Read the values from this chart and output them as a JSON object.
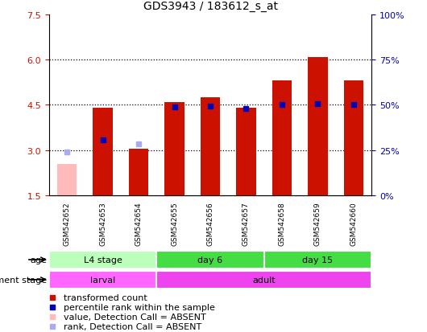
{
  "title": "GDS3943 / 183612_s_at",
  "samples": [
    "GSM542652",
    "GSM542653",
    "GSM542654",
    "GSM542655",
    "GSM542656",
    "GSM542657",
    "GSM542658",
    "GSM542659",
    "GSM542660"
  ],
  "transformed_count": [
    null,
    4.4,
    3.05,
    4.6,
    4.75,
    4.4,
    5.3,
    6.08,
    5.3
  ],
  "transformed_count_absent": [
    2.55,
    null,
    null,
    null,
    null,
    null,
    null,
    null,
    null
  ],
  "percentile_rank": [
    null,
    3.35,
    null,
    4.42,
    4.47,
    4.37,
    4.5,
    4.55,
    4.5
  ],
  "percentile_rank_absent": [
    2.93,
    null,
    3.22,
    null,
    null,
    null,
    null,
    null,
    null
  ],
  "ylim_left": [
    1.5,
    7.5
  ],
  "ylim_right": [
    0,
    100
  ],
  "yticks_left": [
    1.5,
    3.0,
    4.5,
    6.0,
    7.5
  ],
  "yticks_right": [
    0,
    25,
    50,
    75,
    100
  ],
  "ytick_labels_right": [
    "0%",
    "25%",
    "50%",
    "75%",
    "100%"
  ],
  "red_color": "#cc1100",
  "pink_color": "#ffbbbb",
  "blue_color": "#0000bb",
  "lightblue_color": "#aaaaee",
  "age_data": [
    {
      "label": "L4 stage",
      "start": 0,
      "end": 2,
      "color": "#bbffbb"
    },
    {
      "label": "day 6",
      "start": 3,
      "end": 5,
      "color": "#44dd44"
    },
    {
      "label": "day 15",
      "start": 6,
      "end": 8,
      "color": "#44dd44"
    }
  ],
  "dev_data": [
    {
      "label": "larval",
      "start": 0,
      "end": 2,
      "color": "#ff66ff"
    },
    {
      "label": "adult",
      "start": 3,
      "end": 8,
      "color": "#ee44ee"
    }
  ],
  "label_bg_color": "#cccccc",
  "white": "#ffffff",
  "title_fontsize": 10,
  "tick_fontsize": 8,
  "label_fontsize": 8,
  "legend_fontsize": 8
}
